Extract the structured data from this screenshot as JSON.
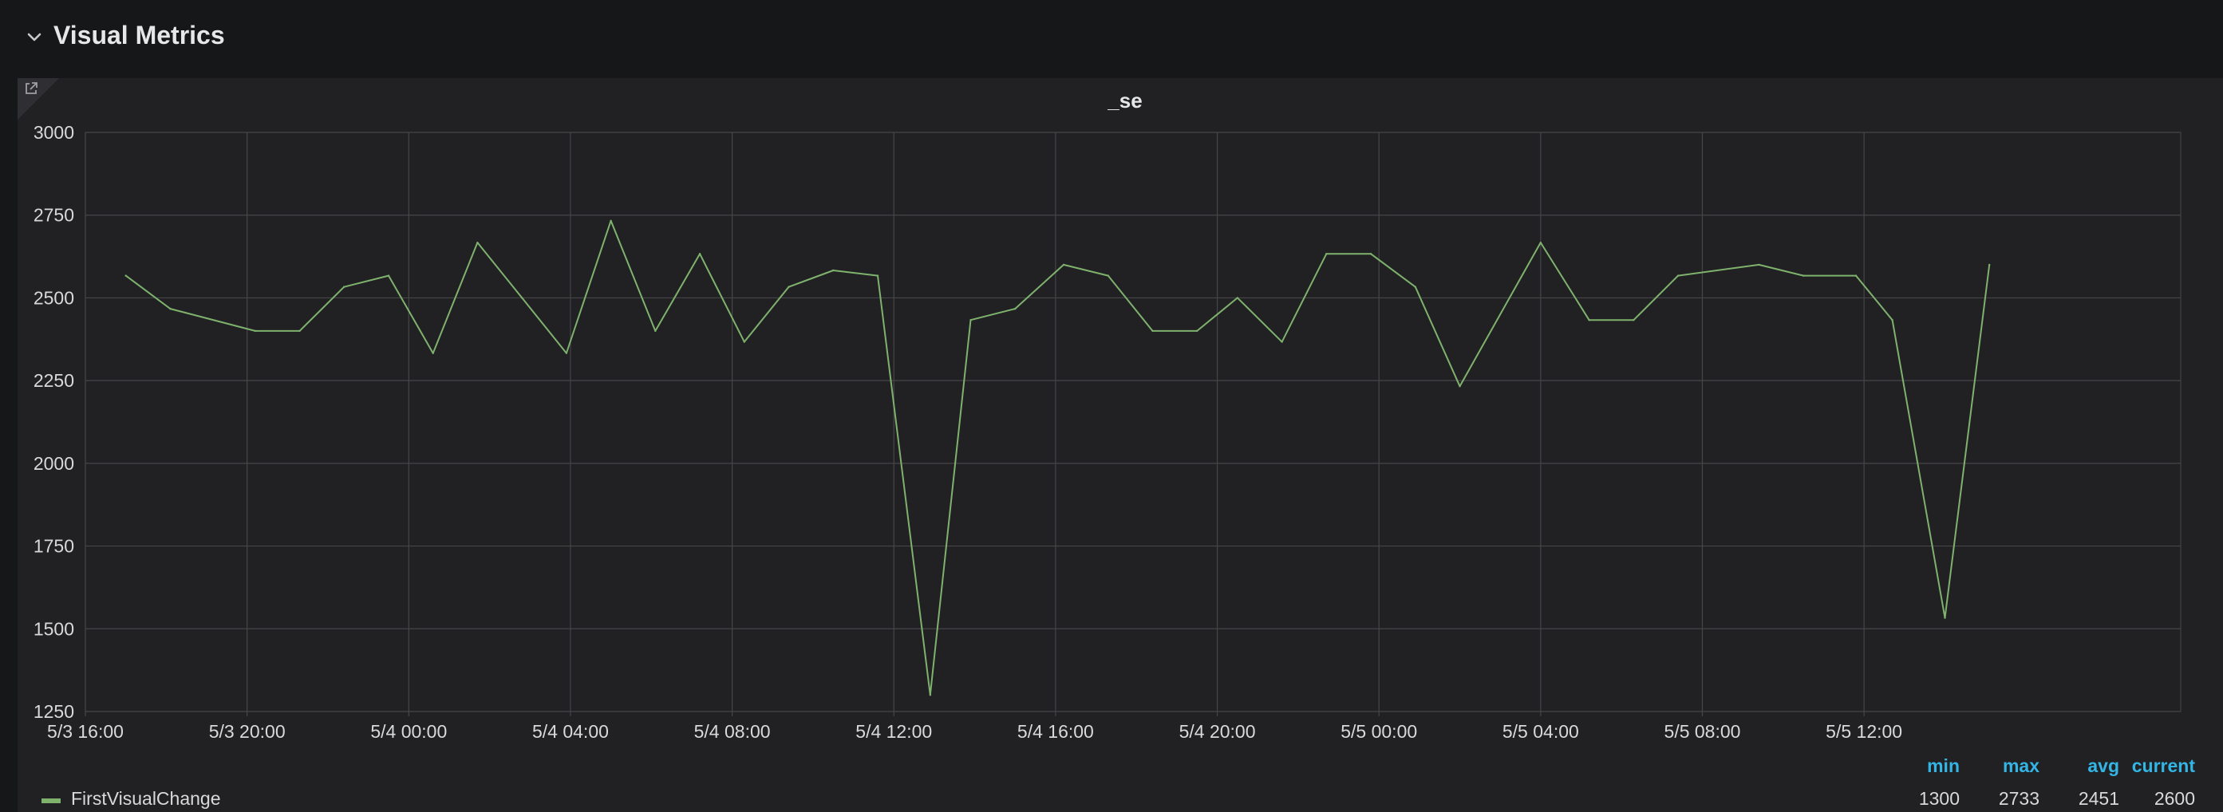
{
  "row": {
    "title": "Visual Metrics",
    "chevron_icon": "chevron-down-icon"
  },
  "panel": {
    "title": "_se",
    "link_icon": "external-link-icon"
  },
  "colors": {
    "series": "#7eb26d",
    "grid": "#464649",
    "legend_header": "#33b5e5"
  },
  "chart_data": {
    "type": "line",
    "title": "_se",
    "xlabel": "",
    "ylabel": "",
    "ylim": [
      1250,
      3000
    ],
    "xlim": [
      "2019-05-03 16:00",
      "2019-05-05 19:50"
    ],
    "yticks": [
      "3000",
      "2750",
      "2500",
      "2250",
      "2000",
      "1750",
      "1500",
      "1250"
    ],
    "xticks": [
      "5/3 16:00",
      "5/3 20:00",
      "5/4 00:00",
      "5/4 04:00",
      "5/4 08:00",
      "5/4 12:00",
      "5/4 16:00",
      "5/4 20:00",
      "5/5 00:00",
      "5/5 04:00",
      "5/5 08:00",
      "5/5 12:00"
    ],
    "grid": true,
    "legend": "bottom-left",
    "series": [
      {
        "name": "FirstVisualChange",
        "color": "#7eb26d",
        "points": [
          [
            "2019-05-03 17:00",
            2567
          ],
          [
            "2019-05-03 18:06",
            2467
          ],
          [
            "2019-05-03 20:12",
            2400
          ],
          [
            "2019-05-03 21:18",
            2400
          ],
          [
            "2019-05-03 22:24",
            2533
          ],
          [
            "2019-05-03 23:30",
            2567
          ],
          [
            "2019-05-04 00:36",
            2333
          ],
          [
            "2019-05-04 01:42",
            2667
          ],
          [
            "2019-05-04 02:48",
            2500
          ],
          [
            "2019-05-04 03:54",
            2333
          ],
          [
            "2019-05-04 05:00",
            2733
          ],
          [
            "2019-05-04 06:06",
            2400
          ],
          [
            "2019-05-04 07:12",
            2633
          ],
          [
            "2019-05-04 08:18",
            2367
          ],
          [
            "2019-05-04 09:24",
            2533
          ],
          [
            "2019-05-04 10:30",
            2583
          ],
          [
            "2019-05-04 11:36",
            2567
          ],
          [
            "2019-05-04 12:54",
            1300
          ],
          [
            "2019-05-04 13:54",
            2433
          ],
          [
            "2019-05-04 15:00",
            2467
          ],
          [
            "2019-05-04 16:12",
            2600
          ],
          [
            "2019-05-04 17:18",
            2567
          ],
          [
            "2019-05-04 18:24",
            2400
          ],
          [
            "2019-05-04 19:30",
            2400
          ],
          [
            "2019-05-04 20:30",
            2500
          ],
          [
            "2019-05-04 21:36",
            2367
          ],
          [
            "2019-05-04 22:42",
            2633
          ],
          [
            "2019-05-04 23:48",
            2633
          ],
          [
            "2019-05-05 00:54",
            2533
          ],
          [
            "2019-05-05 02:00",
            2233
          ],
          [
            "2019-05-05 04:00",
            2667
          ],
          [
            "2019-05-05 05:12",
            2433
          ],
          [
            "2019-05-05 06:18",
            2433
          ],
          [
            "2019-05-05 07:24",
            2567
          ],
          [
            "2019-05-05 09:24",
            2600
          ],
          [
            "2019-05-05 10:30",
            2567
          ],
          [
            "2019-05-05 11:48",
            2567
          ],
          [
            "2019-05-05 12:42",
            2433
          ],
          [
            "2019-05-05 14:00",
            1533
          ],
          [
            "2019-05-05 15:06",
            2600
          ]
        ]
      }
    ]
  },
  "legend": {
    "headers": [
      "min",
      "max",
      "avg",
      "current"
    ],
    "items": [
      {
        "name": "FirstVisualChange",
        "min": "1300",
        "max": "2733",
        "avg": "2451",
        "current": "2600"
      }
    ]
  }
}
